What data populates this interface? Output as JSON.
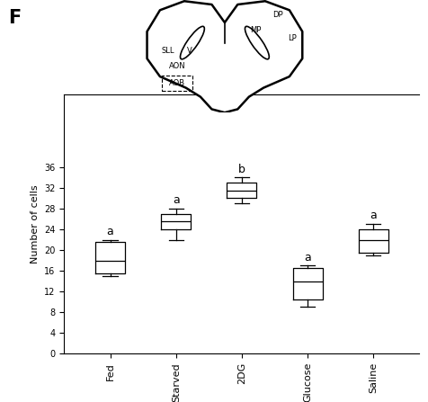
{
  "chart_data": {
    "type": "box",
    "panel_label": "F",
    "y_label": "Number of cells",
    "categories": [
      "Fed",
      "Starved",
      "2DG",
      "Glucose",
      "Saline"
    ],
    "boxes": [
      {
        "min": 15,
        "q1": 15.5,
        "median": 18,
        "q3": 21.5,
        "max": 22
      },
      {
        "min": 22,
        "q1": 24,
        "median": 25.5,
        "q3": 27,
        "max": 28
      },
      {
        "min": 29,
        "q1": 30,
        "median": 31.5,
        "q3": 33,
        "max": 34
      },
      {
        "min": 9,
        "q1": 10.5,
        "median": 14,
        "q3": 16.5,
        "max": 17
      },
      {
        "min": 19,
        "q1": 19.5,
        "median": 22,
        "q3": 24,
        "max": 25
      }
    ],
    "group_labels": [
      "a",
      "a",
      "b",
      "a",
      "a"
    ],
    "diagram_labels": [
      "DP",
      "MP",
      "LP",
      "SLL",
      "V",
      "AON",
      "AOB"
    ],
    "ylim": [
      0,
      50
    ],
    "yticks": [
      0,
      4,
      8,
      12,
      16,
      20,
      24,
      28,
      32,
      36
    ],
    "color": "#000000",
    "grid": false
  }
}
